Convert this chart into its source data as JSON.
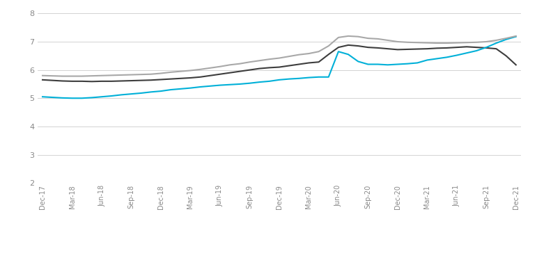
{
  "x_tick_labels": [
    "Dec-17",
    "Mar-18",
    "Jun-18",
    "Sep-18",
    "Dec-18",
    "Mar-19",
    "Jun-19",
    "Sep-19",
    "Dec-19",
    "Mar-20",
    "Jun-20",
    "Sep-20",
    "Dec-20",
    "Mar-21",
    "Jun-21",
    "Sep-21",
    "Dec-21"
  ],
  "x_tick_positions": [
    0,
    3,
    6,
    9,
    12,
    15,
    18,
    21,
    24,
    27,
    30,
    33,
    36,
    39,
    42,
    45,
    48
  ],
  "all_retail": [
    5.65,
    5.63,
    5.61,
    5.6,
    5.6,
    5.59,
    5.6,
    5.6,
    5.61,
    5.62,
    5.63,
    5.64,
    5.66,
    5.68,
    5.7,
    5.72,
    5.75,
    5.8,
    5.85,
    5.9,
    5.95,
    6.0,
    6.05,
    6.08,
    6.1,
    6.15,
    6.2,
    6.25,
    6.28,
    6.55,
    6.8,
    6.88,
    6.85,
    6.8,
    6.78,
    6.75,
    6.72,
    6.73,
    6.74,
    6.75,
    6.77,
    6.78,
    6.8,
    6.82,
    6.8,
    6.78,
    6.75,
    6.5,
    6.18
  ],
  "high_street": [
    5.05,
    5.03,
    5.01,
    5.0,
    5.0,
    5.02,
    5.05,
    5.08,
    5.12,
    5.15,
    5.18,
    5.22,
    5.25,
    5.3,
    5.33,
    5.36,
    5.4,
    5.43,
    5.46,
    5.48,
    5.5,
    5.53,
    5.57,
    5.6,
    5.65,
    5.68,
    5.7,
    5.73,
    5.75,
    5.75,
    6.65,
    6.55,
    6.3,
    6.2,
    6.2,
    6.18,
    6.2,
    6.22,
    6.25,
    6.35,
    6.4,
    6.45,
    6.52,
    6.6,
    6.68,
    6.8,
    6.95,
    7.08,
    7.18
  ],
  "retail_warehouses": [
    5.8,
    5.79,
    5.78,
    5.78,
    5.78,
    5.79,
    5.8,
    5.81,
    5.82,
    5.83,
    5.84,
    5.85,
    5.88,
    5.92,
    5.95,
    5.98,
    6.02,
    6.07,
    6.12,
    6.18,
    6.22,
    6.28,
    6.33,
    6.38,
    6.42,
    6.48,
    6.54,
    6.58,
    6.65,
    6.85,
    7.15,
    7.2,
    7.18,
    7.12,
    7.1,
    7.05,
    7.0,
    6.98,
    6.97,
    6.96,
    6.95,
    6.95,
    6.96,
    6.97,
    6.98,
    7.0,
    7.05,
    7.12,
    7.2
  ],
  "all_retail_color": "#3d3d3d",
  "high_street_color": "#00b0d8",
  "retail_warehouses_color": "#a8a8a8",
  "ylim": [
    2,
    8
  ],
  "yticks": [
    2,
    3,
    4,
    5,
    6,
    7,
    8
  ],
  "background_color": "#ffffff",
  "grid_color": "#cccccc"
}
